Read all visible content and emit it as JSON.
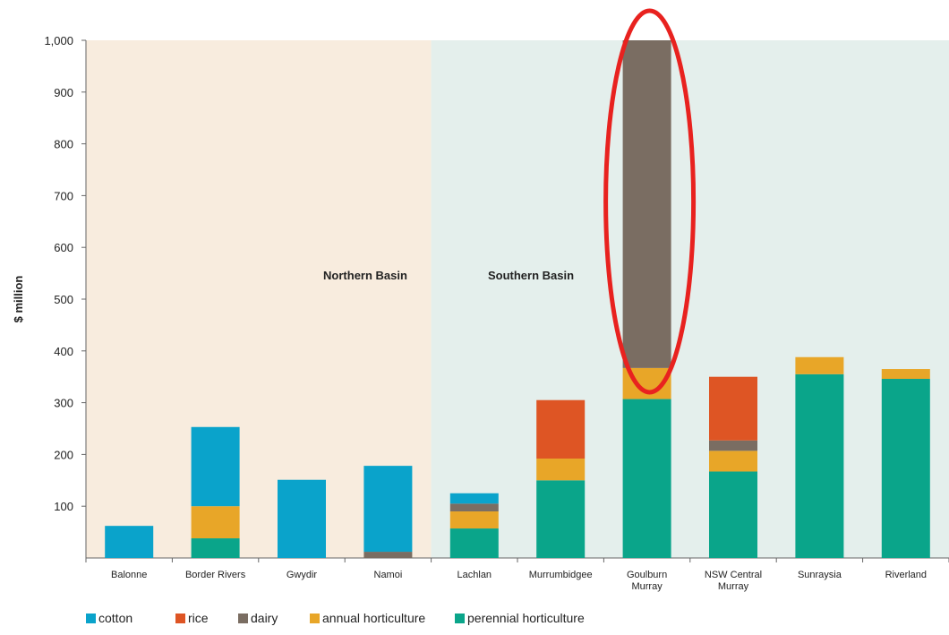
{
  "chart_data": {
    "type": "bar",
    "stacked": true,
    "title": "",
    "xlabel": "",
    "ylabel": "$ million",
    "ylim": [
      0,
      1000
    ],
    "yticks": [
      "100",
      "200",
      "300",
      "400",
      "500",
      "600",
      "700",
      "800",
      "900",
      "1,000"
    ],
    "grid": false,
    "legend_position": "bottom",
    "categories": [
      [
        "Balonne"
      ],
      [
        "Border Rivers"
      ],
      [
        "Gwydir"
      ],
      [
        "Namoi"
      ],
      [
        "Lachlan"
      ],
      [
        "Murrumbidgee"
      ],
      [
        "Goulburn",
        "Murray"
      ],
      [
        "NSW Central",
        "Murray"
      ],
      [
        "Sunraysia"
      ],
      [
        "Riverland"
      ]
    ],
    "series": [
      {
        "name": "perennial horticulture",
        "color": "#0aa58a",
        "values": [
          0,
          38,
          0,
          0,
          57,
          150,
          307,
          167,
          355,
          346
        ]
      },
      {
        "name": "annual horticulture",
        "color": "#e8a628",
        "values": [
          0,
          62,
          0,
          0,
          33,
          42,
          60,
          40,
          33,
          19
        ]
      },
      {
        "name": "dairy",
        "color": "#7a6d62",
        "values": [
          0,
          0,
          0,
          12,
          15,
          0,
          633,
          20,
          0,
          0
        ]
      },
      {
        "name": "rice",
        "color": "#de5524",
        "values": [
          0,
          0,
          0,
          0,
          0,
          113,
          0,
          123,
          0,
          0
        ]
      },
      {
        "name": "cotton",
        "color": "#0aa3cb",
        "values": [
          62,
          153,
          151,
          166,
          20,
          0,
          0,
          0,
          0,
          0
        ]
      }
    ],
    "legend_order": [
      "cotton",
      "rice",
      "dairy",
      "annual horticulture",
      "perennial horticulture"
    ],
    "regions": [
      {
        "label": "Northern Basin",
        "color": "#f8ecde",
        "from_category": 0,
        "to_category": 3
      },
      {
        "label": "Southern Basin",
        "color": "#e4efec",
        "from_category": 4,
        "to_category": 9
      }
    ],
    "annotation": {
      "type": "ellipse",
      "highlights_category": 6,
      "color": "#e8221f"
    }
  }
}
